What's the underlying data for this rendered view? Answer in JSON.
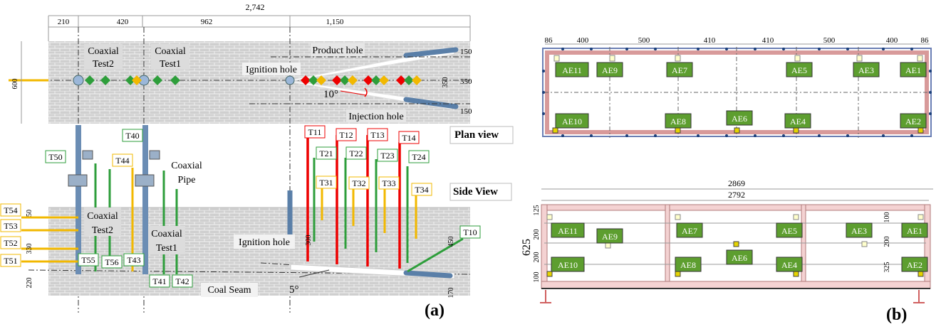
{
  "panel_a": {
    "label": "(a)",
    "top_total": "2,742",
    "top_segments": [
      "210",
      "420",
      "962",
      "1,150"
    ],
    "plan_title": "Plan view",
    "side_title": "Side View",
    "plan_labels": {
      "coaxial_test2": "Coaxial Test2",
      "coaxial_test1": "Coaxial Test1",
      "product_hole": "Product hole",
      "ignition_hole": "Ignition hole",
      "injection_hole": "Injection hole",
      "angle": "10°"
    },
    "plan_dims": {
      "left": "600",
      "right_mid": "350",
      "right_center": "350",
      "right_top": "150",
      "right_bottom": "150"
    },
    "side_labels": {
      "coaxial_pipe": "Coaxial Pipe",
      "coaxial_test2": "Coaxial Test2",
      "coaxial_test1": "Coaxial Test1",
      "ignition_hole": "Ignition hole",
      "coal_seam": "Coal Seam",
      "angle": "5°"
    },
    "side_dims": {
      "d50": "50",
      "d330": "330",
      "d220": "220",
      "d300": "300",
      "d450": "450",
      "d170": "170"
    },
    "side_tags": [
      "T11",
      "T12",
      "T13",
      "T14",
      "T21",
      "T22",
      "T23",
      "T24",
      "T31",
      "T32",
      "T33",
      "T34",
      "T40",
      "T41",
      "T42",
      "T43",
      "T44",
      "T50",
      "T51",
      "T52",
      "T53",
      "T54",
      "T55",
      "T56",
      "T10"
    ]
  },
  "panel_b": {
    "label": "(b)",
    "top_dims": [
      "86",
      "400",
      "500",
      "410",
      "410",
      "500",
      "400",
      "86"
    ],
    "top_sensors": [
      "AE11",
      "AE9",
      "AE7",
      "AE5",
      "AE3",
      "AE1",
      "AE10",
      "AE8",
      "AE6",
      "AE4",
      "AE2"
    ],
    "side_total_outer": "2869",
    "side_total_inner": "2792",
    "side_height": "625",
    "side_left_dims": [
      "125",
      "200",
      "200",
      "100"
    ],
    "side_right_dims": [
      "100",
      "200",
      "325"
    ],
    "side_sensors": [
      "AE11",
      "AE9",
      "AE7",
      "AE5",
      "AE3",
      "AE1",
      "AE10",
      "AE8",
      "AE6",
      "AE4",
      "AE2"
    ]
  }
}
